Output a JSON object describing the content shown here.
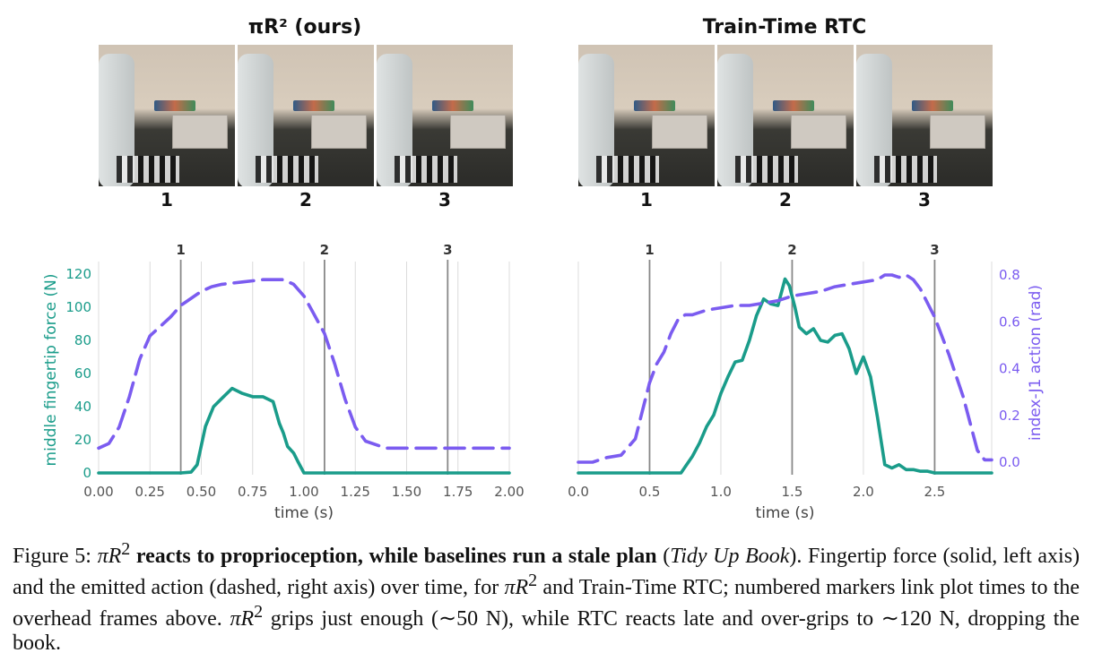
{
  "panels": [
    {
      "title": "πR² (ours)",
      "frame_labels": [
        "1",
        "2",
        "3"
      ]
    },
    {
      "title": "Train-Time RTC",
      "frame_labels": [
        "1",
        "2",
        "3"
      ]
    }
  ],
  "chart_data": [
    {
      "type": "line",
      "xlabel": "time (s)",
      "ylabel": "middle fingertip force (N)",
      "xlim": [
        0,
        2.0
      ],
      "ylim": [
        0,
        130
      ],
      "ylim_right": [
        -0.05,
        0.87
      ],
      "xticks": [
        "0.00",
        "0.25",
        "0.50",
        "0.75",
        "1.00",
        "1.25",
        "1.50",
        "1.75",
        "2.00"
      ],
      "yticks": [
        "0",
        "20",
        "40",
        "60",
        "80",
        "100",
        "120"
      ],
      "grid": "vertical",
      "markers": [
        {
          "label": "1",
          "x": 0.4
        },
        {
          "label": "2",
          "x": 1.1
        },
        {
          "label": "3",
          "x": 1.7
        }
      ],
      "colors": {
        "force": "#1a9c8a",
        "action": "#7b5cf0"
      },
      "series": [
        {
          "name": "force",
          "axis": "left",
          "style": "solid",
          "x": [
            0,
            0.1,
            0.2,
            0.3,
            0.4,
            0.45,
            0.48,
            0.52,
            0.56,
            0.6,
            0.65,
            0.7,
            0.75,
            0.8,
            0.85,
            0.88,
            0.9,
            0.92,
            0.95,
            0.97,
            1.0,
            1.1,
            1.3,
            1.5,
            1.7,
            1.9,
            2.0
          ],
          "values": [
            0,
            0,
            0,
            0,
            0,
            0.5,
            5,
            28,
            40,
            45,
            51,
            48,
            46,
            46,
            43,
            30,
            24,
            16,
            12,
            7,
            0,
            0,
            0,
            0,
            0,
            0,
            0
          ]
        },
        {
          "name": "action",
          "axis": "right",
          "style": "dashed",
          "x": [
            0,
            0.05,
            0.1,
            0.15,
            0.2,
            0.25,
            0.3,
            0.35,
            0.4,
            0.45,
            0.5,
            0.55,
            0.6,
            0.7,
            0.8,
            0.9,
            0.95,
            1.0,
            1.05,
            1.1,
            1.15,
            1.2,
            1.25,
            1.3,
            1.4,
            1.5,
            1.6,
            1.7,
            1.8,
            1.9,
            2.0
          ],
          "values": [
            0.06,
            0.08,
            0.15,
            0.28,
            0.44,
            0.54,
            0.58,
            0.62,
            0.67,
            0.7,
            0.73,
            0.75,
            0.76,
            0.77,
            0.78,
            0.78,
            0.76,
            0.71,
            0.63,
            0.55,
            0.42,
            0.27,
            0.15,
            0.09,
            0.06,
            0.06,
            0.06,
            0.06,
            0.06,
            0.06,
            0.06
          ]
        }
      ]
    },
    {
      "type": "line",
      "xlabel": "time (s)",
      "ylabel": "index-J1 action (rad)",
      "xlim": [
        0,
        2.9
      ],
      "ylim": [
        0,
        130
      ],
      "ylim_right": [
        -0.05,
        0.87
      ],
      "xticks": [
        "0.0",
        "0.5",
        "1.0",
        "1.5",
        "2.0",
        "2.5"
      ],
      "yticks_right": [
        "0.0",
        "0.2",
        "0.4",
        "0.6",
        "0.8"
      ],
      "grid": "vertical",
      "markers": [
        {
          "label": "1",
          "x": 0.5
        },
        {
          "label": "2",
          "x": 1.5
        },
        {
          "label": "3",
          "x": 2.5
        }
      ],
      "colors": {
        "force": "#1a9c8a",
        "action": "#7b5cf0"
      },
      "series": [
        {
          "name": "force",
          "axis": "left",
          "style": "solid",
          "x": [
            0,
            0.3,
            0.6,
            0.72,
            0.8,
            0.85,
            0.9,
            0.95,
            1.0,
            1.05,
            1.1,
            1.15,
            1.2,
            1.25,
            1.3,
            1.35,
            1.4,
            1.45,
            1.48,
            1.52,
            1.55,
            1.6,
            1.65,
            1.7,
            1.75,
            1.8,
            1.85,
            1.9,
            1.95,
            2.0,
            2.05,
            2.1,
            2.15,
            2.2,
            2.25,
            2.3,
            2.35,
            2.4,
            2.45,
            2.5,
            2.6,
            2.75,
            2.9
          ],
          "values": [
            0,
            0,
            0,
            0,
            10,
            18,
            28,
            35,
            48,
            58,
            67,
            68,
            80,
            95,
            105,
            102,
            101,
            117,
            113,
            100,
            88,
            84,
            87,
            80,
            79,
            83,
            84,
            75,
            60,
            70,
            58,
            33,
            5,
            3,
            5,
            2,
            2,
            1,
            1,
            0,
            0,
            0,
            0
          ]
        },
        {
          "name": "action",
          "axis": "right",
          "style": "dashed",
          "x": [
            0,
            0.1,
            0.15,
            0.2,
            0.3,
            0.4,
            0.45,
            0.5,
            0.55,
            0.6,
            0.65,
            0.7,
            0.75,
            0.8,
            0.9,
            1.0,
            1.1,
            1.2,
            1.3,
            1.4,
            1.5,
            1.6,
            1.7,
            1.8,
            1.9,
            2.0,
            2.1,
            2.15,
            2.2,
            2.25,
            2.3,
            2.35,
            2.4,
            2.5,
            2.6,
            2.7,
            2.8,
            2.85,
            2.9
          ],
          "values": [
            0.0,
            0.0,
            0.01,
            0.02,
            0.03,
            0.1,
            0.22,
            0.34,
            0.42,
            0.47,
            0.55,
            0.61,
            0.63,
            0.63,
            0.65,
            0.66,
            0.67,
            0.67,
            0.68,
            0.69,
            0.71,
            0.72,
            0.73,
            0.75,
            0.76,
            0.77,
            0.78,
            0.8,
            0.8,
            0.79,
            0.8,
            0.78,
            0.74,
            0.62,
            0.46,
            0.28,
            0.05,
            0.01,
            0.01
          ]
        }
      ]
    }
  ],
  "caption": {
    "figure_label": "Figure 5:",
    "pi_r2": "πR",
    "exponent": "2",
    "bold_claim": "reacts to proprioception, while baselines run a stale plan",
    "task_open": "(",
    "task": "Tidy Up Book",
    "task_close": ").",
    "body1": "Fingertip force (solid, left axis) and the emitted action (dashed, right axis) over time, for",
    "body2": "and Train-Time RTC; numbered markers link plot times to the overhead frames above.",
    "body3": "grips just enough (∼50 N), while RTC reacts late and over-grips to ∼120 N, dropping the book."
  }
}
